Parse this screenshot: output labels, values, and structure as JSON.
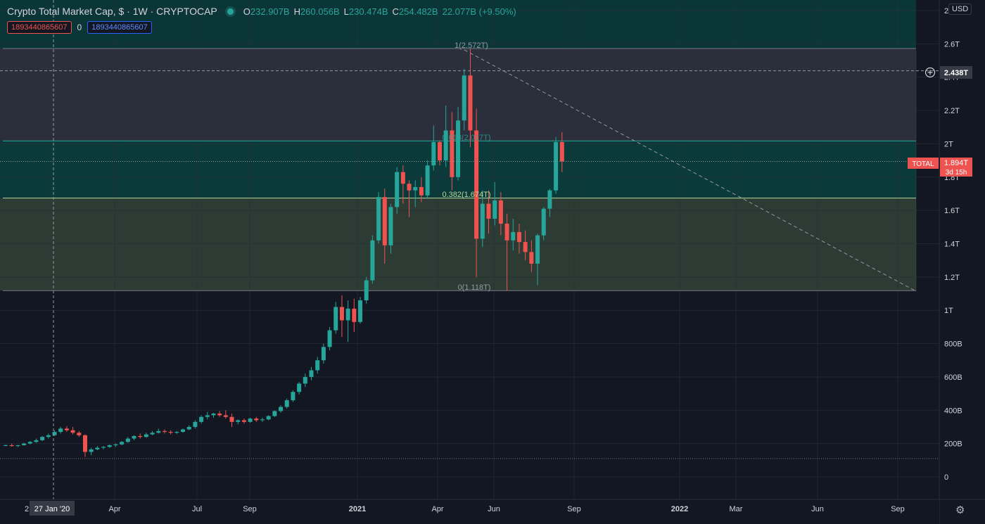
{
  "header": {
    "title": "Crypto Total Market Cap, $ · 1W · CRYPTOCAP",
    "ohlc": [
      {
        "key": "O",
        "value": "232.907B"
      },
      {
        "key": "H",
        "value": "260.056B"
      },
      {
        "key": "L",
        "value": "230.474B"
      },
      {
        "key": "C",
        "value": "254.482B"
      }
    ],
    "change": "22.077B (+9.50%)",
    "badge_left": "1893440865607",
    "badge_mid": "0",
    "badge_right": "1893440865607",
    "currency": "USD"
  },
  "colors": {
    "background": "#131722",
    "up": "#26a69a",
    "down": "#ef5350",
    "grid": "#2a2e39",
    "fib_teal": "#0b3a3b",
    "fib_gray": "#2b2f3c",
    "fib_olive": "#2c3b33"
  },
  "axis": {
    "y_labels": [
      "0",
      "200B",
      "400B",
      "600B",
      "800B",
      "1T",
      "1.2T",
      "1.4T",
      "1.6T",
      "1.8T",
      "2T",
      "2.2T",
      "2.4T",
      "2.6T",
      "2"
    ],
    "x_labels": [
      "Apr",
      "Jul",
      "Sep",
      "2021",
      "Apr",
      "Jun",
      "Sep",
      "2022",
      "Mar",
      "Jun",
      "Sep"
    ],
    "x_first_partial": "2",
    "crosshair_date": "27 Jan '20",
    "price_tag": "2.438T",
    "total_label": "TOTAL",
    "total_value": "1.894T",
    "total_countdown": "3d 15h"
  },
  "fib_labels": {
    "level_1": "1(2.572T)",
    "level_0618": "0.618(2.017T)",
    "level_0382": "0.382(1.674T)",
    "level_0": "0(1.118T)"
  },
  "chart_data": {
    "type": "candlestick",
    "title": "Crypto Total Market Cap, $",
    "interval": "1W",
    "units": "USD billions",
    "ylim": [
      0,
      2800
    ],
    "grid": true,
    "fib_levels": [
      {
        "ratio": 1,
        "value": 2572
      },
      {
        "ratio": 0.618,
        "value": 2017
      },
      {
        "ratio": 0.382,
        "value": 1674
      },
      {
        "ratio": 0,
        "value": 1118
      }
    ],
    "last_price": 1894,
    "crosshair_price": 2438,
    "ohlc": [
      [
        190,
        195,
        185,
        190
      ],
      [
        190,
        200,
        182,
        185
      ],
      [
        185,
        192,
        180,
        190
      ],
      [
        190,
        205,
        188,
        200
      ],
      [
        200,
        215,
        195,
        210
      ],
      [
        210,
        230,
        205,
        220
      ],
      [
        220,
        245,
        215,
        240
      ],
      [
        240,
        260,
        230,
        250
      ],
      [
        250,
        280,
        245,
        270
      ],
      [
        270,
        300,
        260,
        290
      ],
      [
        290,
        305,
        270,
        280
      ],
      [
        280,
        300,
        255,
        265
      ],
      [
        265,
        275,
        240,
        250
      ],
      [
        250,
        255,
        120,
        150
      ],
      [
        150,
        175,
        130,
        165
      ],
      [
        165,
        185,
        160,
        175
      ],
      [
        175,
        185,
        165,
        180
      ],
      [
        180,
        195,
        175,
        190
      ],
      [
        190,
        200,
        180,
        195
      ],
      [
        195,
        215,
        190,
        210
      ],
      [
        210,
        240,
        205,
        230
      ],
      [
        230,
        250,
        220,
        245
      ],
      [
        245,
        260,
        230,
        240
      ],
      [
        240,
        265,
        235,
        255
      ],
      [
        255,
        275,
        250,
        265
      ],
      [
        265,
        290,
        260,
        275
      ],
      [
        275,
        285,
        260,
        270
      ],
      [
        270,
        280,
        255,
        265
      ],
      [
        265,
        275,
        258,
        270
      ],
      [
        270,
        290,
        265,
        285
      ],
      [
        285,
        310,
        280,
        300
      ],
      [
        300,
        340,
        290,
        330
      ],
      [
        330,
        370,
        320,
        360
      ],
      [
        360,
        390,
        345,
        370
      ],
      [
        370,
        385,
        355,
        380
      ],
      [
        380,
        395,
        360,
        370
      ],
      [
        370,
        400,
        350,
        360
      ],
      [
        360,
        380,
        300,
        330
      ],
      [
        330,
        345,
        315,
        340
      ],
      [
        340,
        350,
        320,
        330
      ],
      [
        330,
        355,
        325,
        350
      ],
      [
        350,
        360,
        330,
        340
      ],
      [
        340,
        355,
        330,
        345
      ],
      [
        345,
        370,
        340,
        365
      ],
      [
        365,
        400,
        360,
        395
      ],
      [
        395,
        430,
        385,
        420
      ],
      [
        420,
        470,
        410,
        460
      ],
      [
        460,
        520,
        450,
        510
      ],
      [
        510,
        570,
        495,
        560
      ],
      [
        560,
        620,
        540,
        600
      ],
      [
        600,
        660,
        580,
        640
      ],
      [
        640,
        720,
        620,
        700
      ],
      [
        700,
        800,
        680,
        780
      ],
      [
        780,
        900,
        760,
        880
      ],
      [
        880,
        1050,
        860,
        1020
      ],
      [
        1020,
        1090,
        840,
        940
      ],
      [
        940,
        1060,
        810,
        1010
      ],
      [
        1010,
        1070,
        870,
        930
      ],
      [
        930,
        1080,
        920,
        1060
      ],
      [
        1060,
        1200,
        1040,
        1180
      ],
      [
        1180,
        1450,
        1160,
        1420
      ],
      [
        1420,
        1710,
        1400,
        1680
      ],
      [
        1680,
        1730,
        1280,
        1390
      ],
      [
        1390,
        1640,
        1340,
        1620
      ],
      [
        1620,
        1860,
        1580,
        1830
      ],
      [
        1830,
        1870,
        1640,
        1760
      ],
      [
        1760,
        1780,
        1560,
        1720
      ],
      [
        1720,
        1780,
        1620,
        1740
      ],
      [
        1740,
        1800,
        1650,
        1690
      ],
      [
        1690,
        1900,
        1670,
        1870
      ],
      [
        1870,
        2110,
        1840,
        2010
      ],
      [
        2010,
        2020,
        1870,
        1900
      ],
      [
        1900,
        2230,
        1860,
        2080
      ],
      [
        2080,
        2190,
        1720,
        1800
      ],
      [
        1800,
        2220,
        1780,
        2140
      ],
      [
        2140,
        2450,
        2080,
        2410
      ],
      [
        2410,
        2572,
        1980,
        2080
      ],
      [
        2080,
        2210,
        1200,
        1430
      ],
      [
        1430,
        1720,
        1380,
        1640
      ],
      [
        1640,
        1720,
        1460,
        1550
      ],
      [
        1550,
        1770,
        1510,
        1660
      ],
      [
        1660,
        1710,
        1450,
        1520
      ],
      [
        1520,
        1580,
        1118,
        1420
      ],
      [
        1420,
        1550,
        1360,
        1470
      ],
      [
        1470,
        1520,
        1340,
        1410
      ],
      [
        1410,
        1480,
        1300,
        1350
      ],
      [
        1350,
        1420,
        1230,
        1280
      ],
      [
        1280,
        1460,
        1150,
        1450
      ],
      [
        1450,
        1620,
        1420,
        1610
      ],
      [
        1610,
        1730,
        1560,
        1720
      ],
      [
        1720,
        2040,
        1700,
        2010
      ],
      [
        2010,
        2070,
        1830,
        1894
      ]
    ]
  }
}
